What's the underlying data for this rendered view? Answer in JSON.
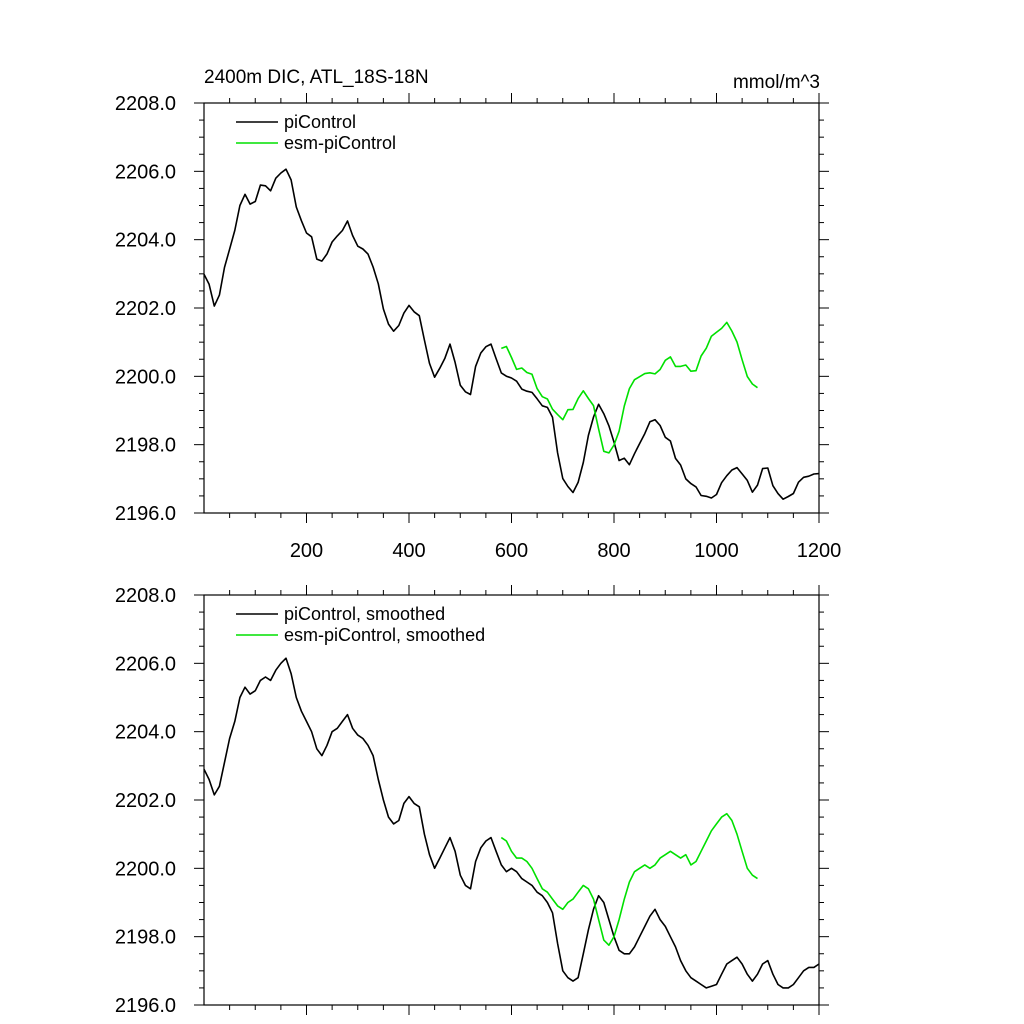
{
  "chart_data": [
    {
      "type": "line",
      "title": "2400m DIC, ATL_18S-18N",
      "units": "mmol/m^3",
      "xlim": [
        0,
        1200
      ],
      "ylim": [
        2196.0,
        2208.0
      ],
      "xticks": [
        200,
        400,
        600,
        800,
        1000,
        1200
      ],
      "xtick_labels": [
        "200",
        "400",
        "600",
        "800",
        "1000",
        "1200"
      ],
      "yticks": [
        2196,
        2198,
        2200,
        2202,
        2204,
        2206,
        2208
      ],
      "ytick_labels": [
        "2196.0",
        "2198.0",
        "2200.0",
        "2202.0",
        "2204.0",
        "2206.0",
        "2208.0"
      ],
      "legend_position": "top-left",
      "series": [
        {
          "name": "piControl",
          "color": "#000000",
          "x": [
            0,
            10,
            20,
            30,
            40,
            50,
            60,
            70,
            80,
            90,
            100,
            110,
            120,
            130,
            140,
            150,
            160,
            170,
            180,
            190,
            200,
            210,
            220,
            230,
            240,
            250,
            260,
            270,
            280,
            290,
            300,
            310,
            320,
            330,
            340,
            350,
            360,
            370,
            380,
            390,
            400,
            410,
            420,
            430,
            440,
            450,
            460,
            470,
            480,
            490,
            500,
            510,
            520,
            530,
            540,
            550,
            560,
            570,
            580,
            590,
            600,
            610,
            620,
            630,
            640,
            650,
            660,
            670,
            680,
            690,
            700,
            710,
            720,
            730,
            740,
            750,
            760,
            770,
            780,
            790,
            800,
            810,
            820,
            830,
            840,
            850,
            860,
            870,
            880,
            890,
            900,
            910,
            920,
            930,
            940,
            950,
            960,
            970,
            980,
            990,
            1000,
            1010,
            1020,
            1030,
            1040,
            1050,
            1060,
            1070,
            1080,
            1090,
            1100,
            1110,
            1120,
            1130,
            1140,
            1150,
            1160,
            1170,
            1180,
            1190,
            1200
          ],
          "values": [
            2202.9,
            2202.6,
            2202.15,
            2202.4,
            2203.1,
            2203.8,
            2204.3,
            2205.0,
            2205.3,
            2205.1,
            2205.2,
            2205.5,
            2205.6,
            2205.5,
            2205.8,
            2206.0,
            2206.15,
            2205.7,
            2205.0,
            2204.6,
            2204.3,
            2204.0,
            2203.5,
            2203.3,
            2203.6,
            2204.0,
            2204.1,
            2204.3,
            2204.5,
            2204.1,
            2203.9,
            2203.8,
            2203.6,
            2203.3,
            2202.6,
            2202.0,
            2201.5,
            2201.3,
            2201.4,
            2201.9,
            2202.1,
            2201.9,
            2201.8,
            2201.0,
            2200.4,
            2200.0,
            2200.3,
            2200.6,
            2200.9,
            2200.5,
            2199.8,
            2199.5,
            2199.4,
            2200.2,
            2200.6,
            2200.8,
            2200.9,
            2200.5,
            2200.1,
            2199.9,
            2200.0,
            2199.9,
            2199.7,
            2199.6,
            2199.5,
            2199.3,
            2199.2,
            2199.0,
            2198.7,
            2197.8,
            2197.0,
            2196.8,
            2196.7,
            2196.8,
            2197.5,
            2198.2,
            2198.8,
            2199.2,
            2199.0,
            2198.5,
            2198.0,
            2197.6,
            2197.5,
            2197.5,
            2197.7,
            2198.0,
            2198.3,
            2198.6,
            2198.8,
            2198.5,
            2198.3,
            2198.0,
            2197.7,
            2197.3,
            2197.0,
            2196.8,
            2196.7,
            2196.6,
            2196.5,
            2196.55,
            2196.6,
            2196.9,
            2197.2,
            2197.3,
            2197.4,
            2197.2,
            2196.9,
            2196.7,
            2196.9,
            2197.2,
            2197.3,
            2196.9,
            2196.6,
            2196.5,
            2196.5,
            2196.6,
            2196.8,
            2197.0,
            2197.1,
            2197.1,
            2197.2
          ]
        },
        {
          "name": "esm-piControl",
          "color": "#00e000",
          "x": [
            580,
            590,
            600,
            610,
            620,
            630,
            640,
            650,
            660,
            670,
            680,
            690,
            700,
            710,
            720,
            730,
            740,
            750,
            760,
            770,
            780,
            790,
            800,
            810,
            820,
            830,
            840,
            850,
            860,
            870,
            880,
            890,
            900,
            910,
            920,
            930,
            940,
            950,
            960,
            970,
            980,
            990,
            1000,
            1010,
            1020,
            1030,
            1040,
            1050,
            1060,
            1070,
            1080
          ],
          "values": [
            2200.9,
            2200.8,
            2200.5,
            2200.3,
            2200.3,
            2200.2,
            2200.0,
            2199.7,
            2199.4,
            2199.3,
            2199.1,
            2198.9,
            2198.8,
            2199.0,
            2199.1,
            2199.3,
            2199.5,
            2199.4,
            2199.1,
            2198.5,
            2197.9,
            2197.75,
            2198.0,
            2198.5,
            2199.1,
            2199.6,
            2199.9,
            2200.0,
            2200.1,
            2200.0,
            2200.1,
            2200.3,
            2200.4,
            2200.5,
            2200.4,
            2200.3,
            2200.4,
            2200.1,
            2200.2,
            2200.5,
            2200.8,
            2201.1,
            2201.3,
            2201.5,
            2201.6,
            2201.4,
            2201.0,
            2200.5,
            2200.0,
            2199.8,
            2199.7
          ]
        }
      ]
    },
    {
      "type": "line",
      "title": "",
      "ylim": [
        2196.0,
        2208.0
      ],
      "xlim": [
        0,
        1200
      ],
      "yticks": [
        2196,
        2198,
        2200,
        2202,
        2204,
        2206,
        2208
      ],
      "ytick_labels": [
        "2196.0",
        "2198.0",
        "2200.0",
        "2202.0",
        "2204.0",
        "2206.0",
        "2208.0"
      ],
      "xticks": [
        200,
        400,
        600,
        800,
        1000,
        1200
      ],
      "legend_position": "top-left",
      "series": [
        {
          "name": "piControl, smoothed",
          "color": "#000000",
          "smoothed_from": "piControl"
        },
        {
          "name": "esm-piControl, smoothed",
          "color": "#00e000",
          "smoothed_from": "esm-piControl"
        }
      ]
    }
  ]
}
